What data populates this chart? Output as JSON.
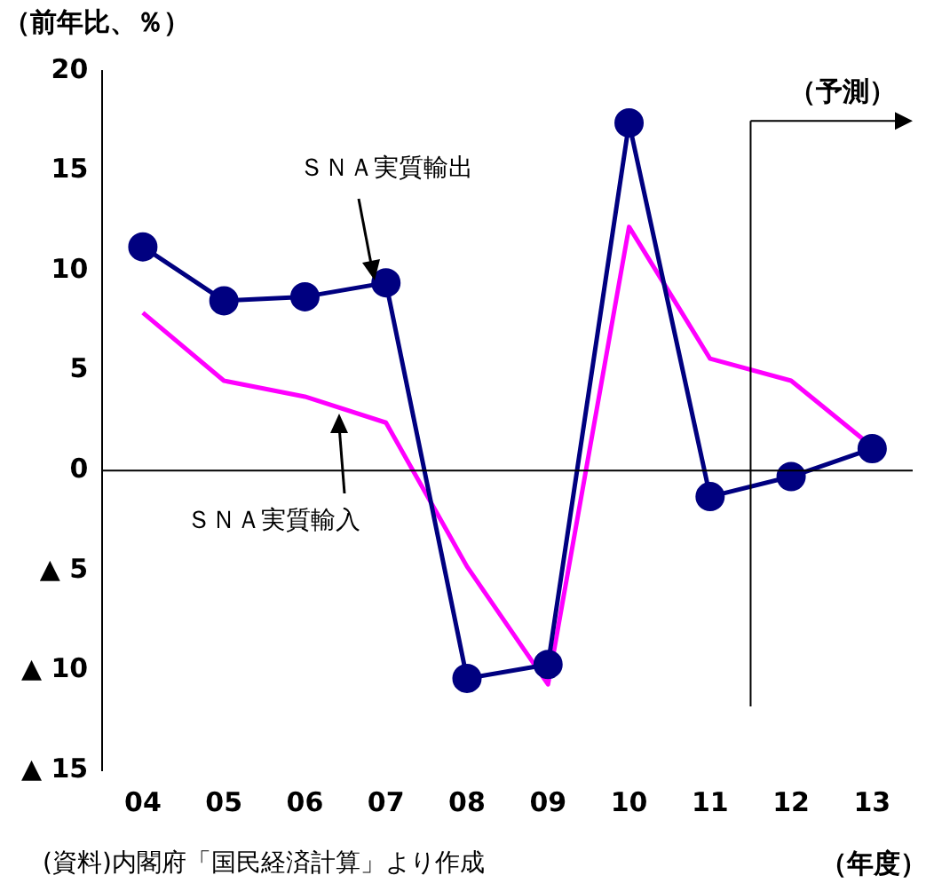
{
  "chart_data": {
    "type": "line",
    "ylabel": "（前年比、％）",
    "xlabel": "（年度）",
    "x": [
      2004,
      2005,
      2006,
      2007,
      2008,
      2009,
      2010,
      2011,
      2012,
      2013
    ],
    "xlim": [
      2003.5,
      2013.5
    ],
    "xticks": [
      {
        "value": 2004,
        "label": "04"
      },
      {
        "value": 2005,
        "label": "05"
      },
      {
        "value": 2006,
        "label": "06"
      },
      {
        "value": 2007,
        "label": "07"
      },
      {
        "value": 2008,
        "label": "08"
      },
      {
        "value": 2009,
        "label": "09"
      },
      {
        "value": 2010,
        "label": "10"
      },
      {
        "value": 2011,
        "label": "11"
      },
      {
        "value": 2012,
        "label": "12"
      },
      {
        "value": 2013,
        "label": "13"
      }
    ],
    "ylim": [
      -15,
      20
    ],
    "yticks": [
      {
        "value": -15,
        "label": "▲ 15"
      },
      {
        "value": -10,
        "label": "▲ 10"
      },
      {
        "value": -5,
        "label": "▲ 5"
      },
      0,
      5,
      10,
      15,
      20
    ],
    "series": [
      {
        "name": "ＳＮＡ実質輸出",
        "color": "#000080",
        "marker": "circle",
        "values": [
          11.2,
          8.5,
          8.7,
          9.4,
          -10.4,
          -9.7,
          17.4,
          -1.3,
          -0.3,
          1.1
        ]
      },
      {
        "name": "ＳＮＡ実質輸入",
        "color": "#ff00ff",
        "marker": "none",
        "values": [
          7.9,
          4.5,
          3.7,
          2.4,
          -4.8,
          -10.7,
          12.2,
          5.6,
          4.5,
          1.2
        ]
      }
    ],
    "ref_lines": [
      {
        "axis": "y",
        "value": 0
      },
      {
        "axis": "x",
        "value": 2011.5,
        "label": "（予測）"
      }
    ],
    "grid": false,
    "legend": false,
    "annotations": [
      "(資料)内閣府「国民経済計算」より作成"
    ]
  }
}
